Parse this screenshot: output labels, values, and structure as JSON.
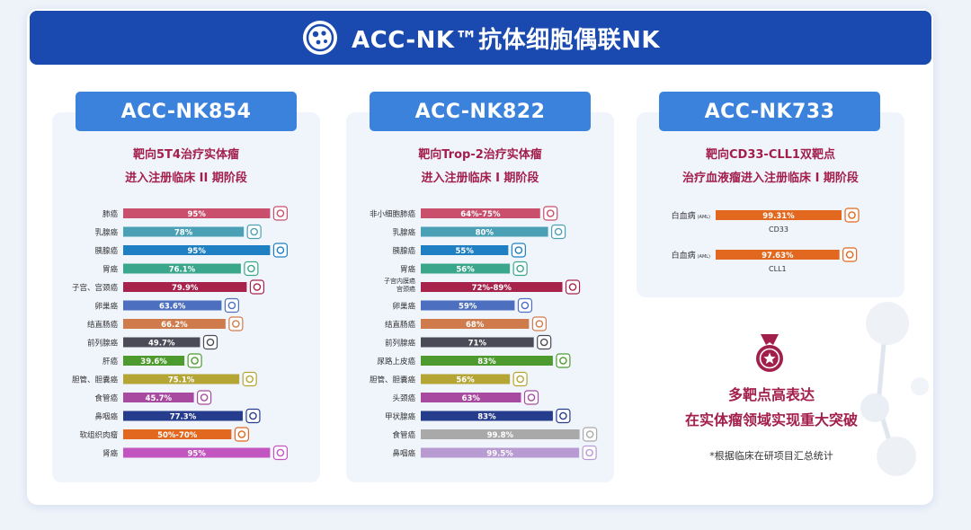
{
  "banner": {
    "title": "ACC-NK™抗体细胞偶联NK",
    "logo_icon": "cell-cluster-icon"
  },
  "chart_data": [
    {
      "type": "bar",
      "title": "ACC-NK854",
      "subtitle_lines": [
        "靶向5T4治疗实体瘤",
        "进入注册临床 II 期阶段"
      ],
      "categories": [
        "肺癌",
        "乳腺癌",
        "胰腺癌",
        "胃癌",
        "子宫、宫颈癌",
        "卵巢癌",
        "结直肠癌",
        "前列腺癌",
        "肝癌",
        "胆管、胆囊癌",
        "食管癌",
        "鼻咽癌",
        "软组织肉瘤",
        "肾癌"
      ],
      "values": [
        95,
        78,
        95,
        76.1,
        79.9,
        63.6,
        66.2,
        49.7,
        39.6,
        75.1,
        45.7,
        77.3,
        70,
        95
      ],
      "value_labels": [
        "95%",
        "78%",
        "95%",
        "76.1%",
        "79.9%",
        "63.6%",
        "66.2%",
        "49.7%",
        "39.6%",
        "75.1%",
        "45.7%",
        "77.3%",
        "50%-70%",
        "95%"
      ],
      "colors": [
        "#c94f6d",
        "#4aa0b5",
        "#1e7fc2",
        "#3aa78c",
        "#a8234c",
        "#4d6fbf",
        "#cf7b4c",
        "#4b4b57",
        "#4d9b2f",
        "#b4a535",
        "#a74aa0",
        "#263c8c",
        "#e1681e",
        "#c355c0"
      ],
      "icons": [
        "lungs-icon",
        "breast-icon",
        "pancreas-icon",
        "stomach-icon",
        "uterus-icon",
        "ovary-icon",
        "colon-icon",
        "prostate-icon",
        "liver-icon",
        "gallbladder-icon",
        "esophagus-icon",
        "nasopharynx-icon",
        "soft-tissue-icon",
        "kidney-icon"
      ],
      "xlim": [
        0,
        100
      ]
    },
    {
      "type": "bar",
      "title": "ACC-NK822",
      "subtitle_lines": [
        "靶向Trop-2治疗实体瘤",
        "进入注册临床 I 期阶段"
      ],
      "categories": [
        "非小细胞肺癌",
        "乳腺癌",
        "胰腺癌",
        "胃癌",
        "子宫内膜癌 宫颈癌",
        "卵巢癌",
        "结直肠癌",
        "前列腺癌",
        "尿路上皮癌",
        "胆管、胆囊癌",
        "头颈癌",
        "甲状腺癌",
        "食管癌",
        "鼻咽癌"
      ],
      "values": [
        75,
        80,
        55,
        56,
        89,
        59,
        68,
        71,
        83,
        56,
        63,
        83,
        99.8,
        99.5
      ],
      "value_labels": [
        "64%-75%",
        "80%",
        "55%",
        "56%",
        "72%-89%",
        "59%",
        "68%",
        "71%",
        "83%",
        "56%",
        "63%",
        "83%",
        "99.8%",
        "99.5%"
      ],
      "colors": [
        "#c94f6d",
        "#4aa0b5",
        "#1e7fc2",
        "#3aa78c",
        "#a8234c",
        "#4d6fbf",
        "#cf7b4c",
        "#4b4b57",
        "#4d9b2f",
        "#b4a535",
        "#a74aa0",
        "#263c8c",
        "#a9a9a9",
        "#b79bd1"
      ],
      "icons": [
        "lungs-icon",
        "breast-icon",
        "pancreas-icon",
        "stomach-icon",
        "uterus-icon",
        "ovary-icon",
        "colon-icon",
        "prostate-icon",
        "bladder-icon",
        "gallbladder-icon",
        "head-neck-icon",
        "thyroid-icon",
        "esophagus-icon",
        "nasopharynx-icon"
      ],
      "xlim": [
        0,
        100
      ]
    },
    {
      "type": "bar",
      "title": "ACC-NK733",
      "subtitle_lines": [
        "靶向CD33-CLL1双靶点",
        "治疗血液瘤进入注册临床 I 期阶段"
      ],
      "categories": [
        "白血病",
        "白血病"
      ],
      "category_notes": [
        "(AML)",
        "(AML)"
      ],
      "values": [
        99.31,
        97.63
      ],
      "value_labels": [
        "99.31%",
        "97.63%"
      ],
      "targets": [
        "CD33",
        "CLL1"
      ],
      "colors": [
        "#e1681e",
        "#e1681e"
      ],
      "icons": [
        "blood-drop-icon",
        "blood-drop-icon"
      ],
      "xlim": [
        0,
        100
      ]
    }
  ],
  "highlight": {
    "icon": "medal-icon",
    "lines": [
      "多靶点高表达",
      "在实体瘤领域实现重大突破"
    ],
    "footnote": "*根据临床在研项目汇总统计"
  }
}
